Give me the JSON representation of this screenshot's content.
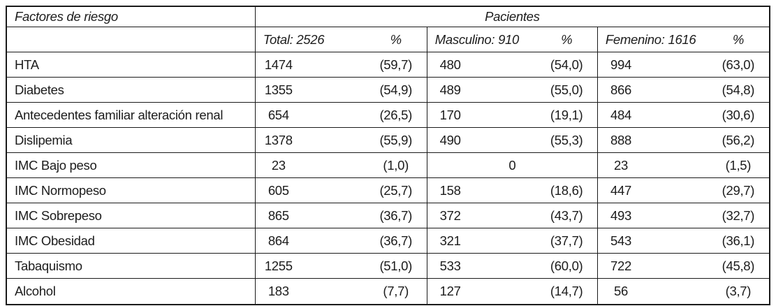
{
  "table": {
    "corner_header": "Factores de riesgo",
    "group_header": "Pacientes",
    "columns": [
      {
        "label": "Total: 2526",
        "pct": "%"
      },
      {
        "label": "Masculino: 910",
        "pct": "%"
      },
      {
        "label": "Femenino: 1616",
        "pct": "%"
      }
    ],
    "rows": [
      {
        "factor": "HTA",
        "total_n": "1474",
        "total_pct": "(59,7)",
        "masc_n": "480",
        "masc_pct": "(54,0)",
        "fem_n": "994",
        "fem_pct": "(63,0)"
      },
      {
        "factor": "Diabetes",
        "total_n": "1355",
        "total_pct": "(54,9)",
        "masc_n": "489",
        "masc_pct": "(55,0)",
        "fem_n": "866",
        "fem_pct": "(54,8)"
      },
      {
        "factor": "Antecedentes familiar alteración renal",
        "total_n": "654",
        "total_pct": "(26,5)",
        "masc_n": "170",
        "masc_pct": "(19,1)",
        "fem_n": "484",
        "fem_pct": "(30,6)"
      },
      {
        "factor": "Dislipemia",
        "total_n": "1378",
        "total_pct": "(55,9)",
        "masc_n": "490",
        "masc_pct": "(55,3)",
        "fem_n": "888",
        "fem_pct": "(56,2)"
      },
      {
        "factor": "IMC Bajo peso",
        "total_n": "23",
        "total_pct": "(1,0)",
        "masc_n": "0",
        "masc_pct": "",
        "masc_merged": true,
        "fem_n": "23",
        "fem_pct": "(1,5)"
      },
      {
        "factor": "IMC Normopeso",
        "total_n": "605",
        "total_pct": "(25,7)",
        "masc_n": "158",
        "masc_pct": "(18,6)",
        "fem_n": "447",
        "fem_pct": "(29,7)"
      },
      {
        "factor": "IMC Sobrepeso",
        "total_n": "865",
        "total_pct": "(36,7)",
        "masc_n": "372",
        "masc_pct": "(43,7)",
        "fem_n": "493",
        "fem_pct": "(32,7)"
      },
      {
        "factor": "IMC Obesidad",
        "total_n": "864",
        "total_pct": "(36,7)",
        "masc_n": "321",
        "masc_pct": "(37,7)",
        "fem_n": "543",
        "fem_pct": "(36,1)"
      },
      {
        "factor": "Tabaquismo",
        "total_n": "1255",
        "total_pct": "(51,0)",
        "masc_n": "533",
        "masc_pct": "(60,0)",
        "fem_n": "722",
        "fem_pct": "(45,8)"
      },
      {
        "factor": "Alcohol",
        "total_n": "183",
        "total_pct": "(7,7)",
        "masc_n": "127",
        "masc_pct": "(14,7)",
        "fem_n": "56",
        "fem_pct": "(3,7)"
      }
    ]
  }
}
